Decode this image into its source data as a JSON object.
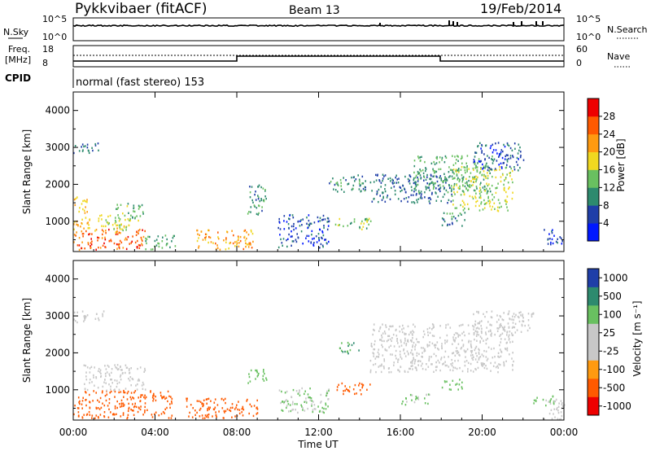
{
  "header": {
    "station": "Pykkvibaer (fitACF)",
    "beam": "Beam 13",
    "date": "19/Feb/2014"
  },
  "sky_panel": {
    "left_label": "N.Sky",
    "left_ticks": [
      "10^5",
      "10^0"
    ],
    "right_ticks": [
      "10^5",
      "10^0"
    ],
    "right_label": "N.Search"
  },
  "freq_panel": {
    "left_label_1": "Freq.",
    "left_label_2": "[MHz]",
    "left_ticks": [
      "18",
      "8"
    ],
    "right_ticks": [
      "60",
      "0"
    ],
    "right_label": "Nave"
  },
  "cpid": {
    "label": "CPID",
    "program": "normal (fast stereo) 153"
  },
  "x_axis": {
    "ticks": [
      "00:00",
      "04:00",
      "08:00",
      "12:00",
      "16:00",
      "20:00",
      "00:00"
    ],
    "label": "Time UT"
  },
  "colors": {
    "power_scale": [
      "#0018ff",
      "#1f3ea8",
      "#2d8a6e",
      "#69c060",
      "#f0d820",
      "#ff9a10",
      "#ff5a00",
      "#ee0000"
    ],
    "velocity_scale": [
      "#ee0000",
      "#ff5a00",
      "#ff9a10",
      "#c8c8c8",
      "#c8c8c8",
      "#69c060",
      "#2d8a6e",
      "#1f3ea8"
    ]
  },
  "chart_data": [
    {
      "type": "heatmap",
      "ylabel": "Slant Range [km]",
      "xlabel": "",
      "x_range_hours": [
        0,
        24
      ],
      "ylim": [
        180,
        4500
      ],
      "yticks": [
        "1000",
        "2000",
        "3000",
        "4000"
      ],
      "colorbar": {
        "label": "Power [dB]",
        "ticks": [
          "4",
          "8",
          "12",
          "16",
          "20",
          "24",
          "28"
        ]
      },
      "regions": [
        {
          "t": [
            0.0,
            1.3
          ],
          "r": [
            2850,
            3150
          ],
          "v": 8
        },
        {
          "t": [
            0.0,
            3.5
          ],
          "r": [
            250,
            800
          ],
          "v": 26
        },
        {
          "t": [
            0.0,
            0.8
          ],
          "r": [
            800,
            1700
          ],
          "v": 20
        },
        {
          "t": [
            1.0,
            2.8
          ],
          "r": [
            700,
            1200
          ],
          "v": 18
        },
        {
          "t": [
            2.0,
            3.4
          ],
          "r": [
            1000,
            1500
          ],
          "v": 14
        },
        {
          "t": [
            3.5,
            5.0
          ],
          "r": [
            250,
            650
          ],
          "v": 12
        },
        {
          "t": [
            6.0,
            8.8
          ],
          "r": [
            250,
            800
          ],
          "v": 22
        },
        {
          "t": [
            8.5,
            9.5
          ],
          "r": [
            1200,
            2000
          ],
          "v": 10
        },
        {
          "t": [
            10.0,
            12.5
          ],
          "r": [
            300,
            1200
          ],
          "v": 6
        },
        {
          "t": [
            12.5,
            14.3
          ],
          "r": [
            1800,
            2300
          ],
          "v": 10
        },
        {
          "t": [
            12.8,
            14.6
          ],
          "r": [
            800,
            1100
          ],
          "v": 14
        },
        {
          "t": [
            14.5,
            18.5
          ],
          "r": [
            1500,
            2300
          ],
          "v": 8
        },
        {
          "t": [
            16.5,
            20.5
          ],
          "r": [
            1800,
            2800
          ],
          "v": 12
        },
        {
          "t": [
            18.5,
            21.5
          ],
          "r": [
            1300,
            2500
          ],
          "v": 16
        },
        {
          "t": [
            19.5,
            22.0
          ],
          "r": [
            2400,
            3150
          ],
          "v": 6
        },
        {
          "t": [
            18.0,
            19.2
          ],
          "r": [
            900,
            1300
          ],
          "v": 10
        },
        {
          "t": [
            23.0,
            24.0
          ],
          "r": [
            400,
            800
          ],
          "v": 6
        }
      ]
    },
    {
      "type": "heatmap",
      "ylabel": "Slant Range [km]",
      "xlabel": "Time UT",
      "x_range_hours": [
        0,
        24
      ],
      "ylim": [
        180,
        4500
      ],
      "yticks": [
        "1000",
        "2000",
        "3000",
        "4000"
      ],
      "colorbar": {
        "label": "Velocity [m s⁻¹]",
        "ticks": [
          "1000",
          "500",
          "100",
          "25",
          "-25",
          "-100",
          "-500",
          "-1000"
        ]
      },
      "regions": [
        {
          "t": [
            0.0,
            1.5
          ],
          "r": [
            2850,
            3150
          ],
          "v": 0
        },
        {
          "t": [
            0.0,
            4.8
          ],
          "r": [
            250,
            1000
          ],
          "v": -250
        },
        {
          "t": [
            0.5,
            3.5
          ],
          "r": [
            1000,
            1700
          ],
          "v": 0
        },
        {
          "t": [
            5.5,
            9.0
          ],
          "r": [
            250,
            800
          ],
          "v": -250
        },
        {
          "t": [
            8.5,
            9.5
          ],
          "r": [
            1200,
            1600
          ],
          "v": 300
        },
        {
          "t": [
            10.0,
            12.5
          ],
          "r": [
            400,
            1100
          ],
          "v": 100
        },
        {
          "t": [
            12.8,
            14.6
          ],
          "r": [
            900,
            1200
          ],
          "v": -200
        },
        {
          "t": [
            13.0,
            14.0
          ],
          "r": [
            2000,
            2300
          ],
          "v": 500
        },
        {
          "t": [
            14.5,
            21.5
          ],
          "r": [
            1500,
            2800
          ],
          "v": 0
        },
        {
          "t": [
            16.0,
            17.5
          ],
          "r": [
            600,
            900
          ],
          "v": 100
        },
        {
          "t": [
            19.5,
            22.5
          ],
          "r": [
            2500,
            3150
          ],
          "v": 0
        },
        {
          "t": [
            18.0,
            19.0
          ],
          "r": [
            1000,
            1300
          ],
          "v": 200
        },
        {
          "t": [
            22.5,
            23.5
          ],
          "r": [
            600,
            900
          ],
          "v": 300
        },
        {
          "t": [
            23.0,
            24.0
          ],
          "r": [
            200,
            800
          ],
          "v": 0
        }
      ]
    }
  ]
}
